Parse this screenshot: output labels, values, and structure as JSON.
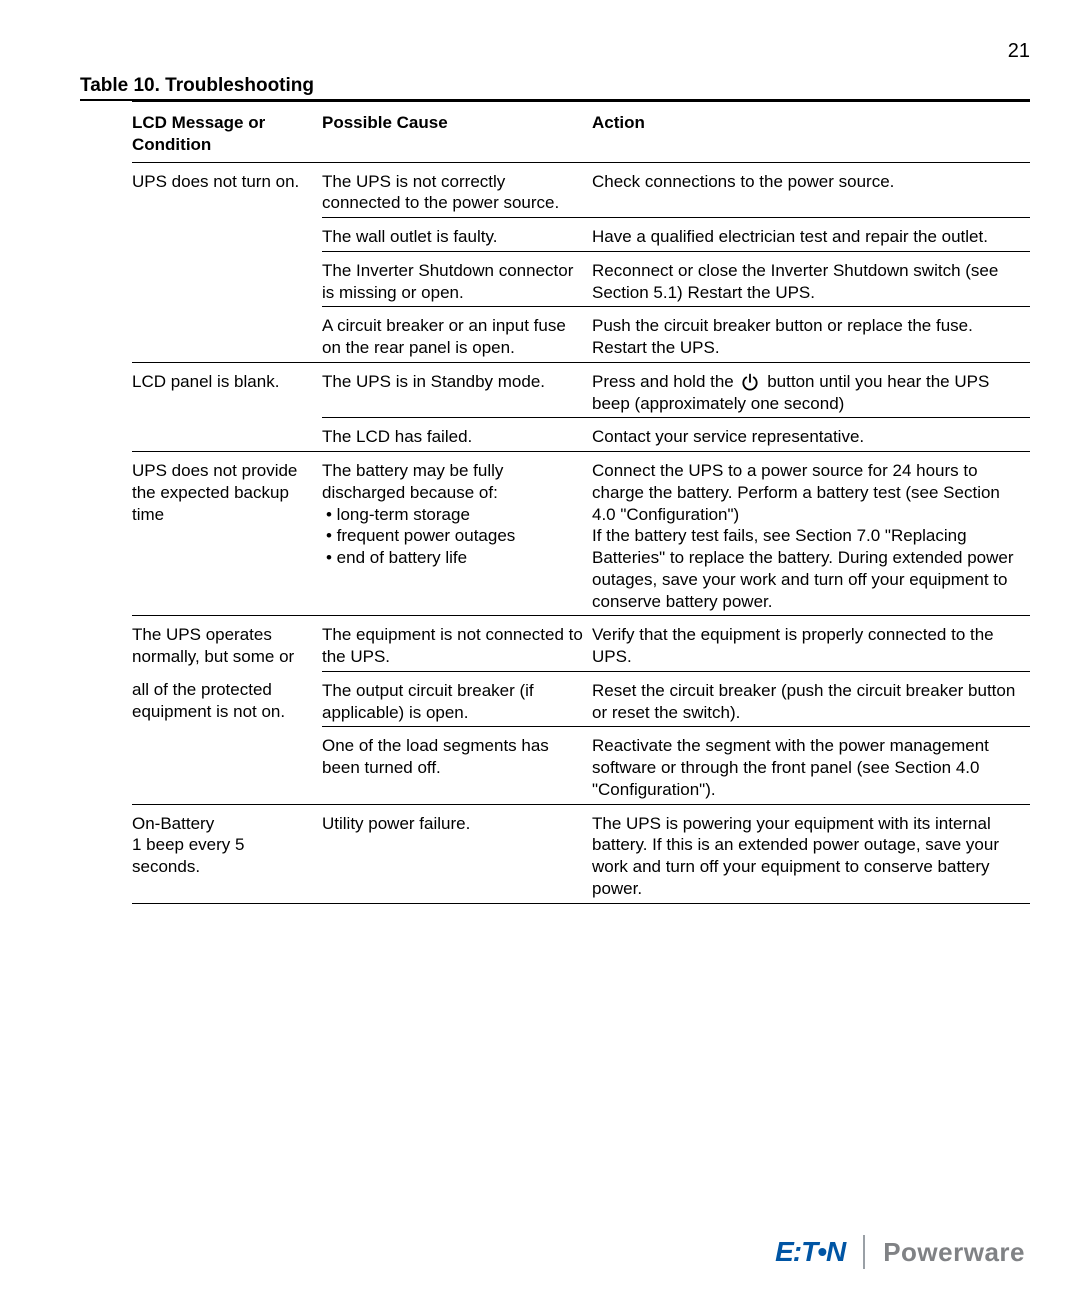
{
  "page_number": "21",
  "caption": "Table 10. Troubleshooting",
  "columns": [
    "LCD Message or Condition",
    "Possible Cause",
    "Action"
  ],
  "rows": [
    {
      "cond": "UPS does not turn on.",
      "cause": "The UPS is not correctly connected to the power source.",
      "action": "Check connections to the power source.",
      "cond_border": false
    },
    {
      "cond": "",
      "cause": "The wall outlet is faulty.",
      "action": "Have a qualified electrician test and repair the outlet.",
      "cond_border": false
    },
    {
      "cond": "",
      "cause": "The Inverter Shutdown connector is missing or open.",
      "action": "Reconnect or close the Inverter Shutdown switch (see Section 5.1) Restart the UPS.",
      "cond_border": false
    },
    {
      "cond": "",
      "cause": "A circuit breaker or an input fuse on the rear panel is open.",
      "action": "Push the circuit breaker button or replace the fuse. Restart the UPS."
    },
    {
      "cond": "LCD panel is blank.",
      "cause": "The UPS is in Standby mode.",
      "action_pre": "Press and hold the",
      "action_post": " button until you hear the UPS beep (approximately one second)",
      "has_icon": true,
      "cond_border": false
    },
    {
      "cond": "",
      "cause": "The LCD has failed.",
      "action": "Contact your service representative."
    },
    {
      "cond": "UPS does not provide the expected backup time",
      "cause_lead": "The battery may be fully discharged because of:",
      "bullets": [
        "• long-term storage",
        "• frequent power outages",
        "• end of battery life"
      ],
      "action": "Connect the UPS to a power source for 24 hours to charge the battery. Perform a battery test (see Section 4.0 \"Configuration\")\nIf the battery test fails, see Section 7.0 \"Replacing Batteries\"  to replace the battery. During extended power outages, save your work and turn off your equipment to conserve battery power."
    },
    {
      "cond": "The UPS operates normally, but some or",
      "cause": "The equipment is not connected to the UPS.",
      "action": "Verify that the equipment is properly connected to the UPS.",
      "cond_border": false
    },
    {
      "cond": "all of the protected equipment is not on.",
      "cause": "The output circuit breaker (if applicable) is open.",
      "action": "Reset the circuit breaker (push the circuit breaker button or reset the switch).",
      "cond_border": false
    },
    {
      "cond": "",
      "cause": "One of the load segments has been turned off.",
      "action": "Reactivate the segment with the power management software or through the front panel (see Section 4.0 \"Configuration\")."
    },
    {
      "cond": "On-Battery\n1 beep every 5 seconds.",
      "cause": "Utility power failure.",
      "action": "The UPS is powering your equipment with its internal battery. If this is an extended power outage, save your work and turn off your equipment to conserve battery power."
    }
  ],
  "footer": {
    "brand1": "E:T•N",
    "brand2": "Powerware"
  },
  "colors": {
    "text": "#000000",
    "bg": "#ffffff",
    "eaton": "#0055a4",
    "powerware": "#808285",
    "divider": "#9aa0a6"
  }
}
